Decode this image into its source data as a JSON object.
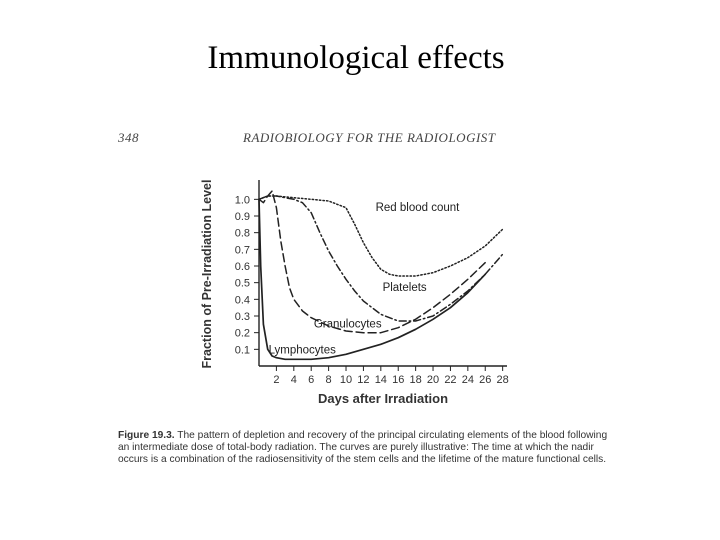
{
  "slide": {
    "title": "Immunological effects"
  },
  "page_header": {
    "page_number": "348",
    "book_title": "RADIOBIOLOGY FOR THE RADIOLOGIST"
  },
  "chart_data": {
    "type": "line",
    "title": "",
    "xlabel": "Days after Irradiation",
    "ylabel": "Fraction of Pre-Irradiation Level",
    "xlim": [
      0,
      28.5
    ],
    "ylim": [
      0,
      1.08
    ],
    "x_ticks": [
      2,
      4,
      6,
      8,
      10,
      12,
      14,
      16,
      18,
      20,
      22,
      24,
      26,
      28
    ],
    "y_ticks": [
      0.1,
      0.2,
      0.3,
      0.4,
      0.5,
      0.6,
      0.7,
      0.8,
      0.9,
      1.0
    ],
    "y_tick_labels": [
      "0.1",
      "0.2",
      "0.3",
      "0.4",
      "0.5",
      "0.6",
      "0.7",
      "0.8",
      "0.9",
      "1.0"
    ],
    "grid": false,
    "legend": "none",
    "series": [
      {
        "name": "Red blood count",
        "style": "dotted",
        "x": [
          0,
          1,
          2,
          4,
          6,
          8,
          10,
          11,
          12,
          13,
          14,
          15,
          16,
          18,
          20,
          22,
          24,
          26,
          28
        ],
        "y": [
          1.0,
          1.02,
          1.02,
          1.01,
          1.0,
          0.99,
          0.95,
          0.85,
          0.74,
          0.65,
          0.58,
          0.55,
          0.54,
          0.54,
          0.56,
          0.6,
          0.65,
          0.72,
          0.82
        ]
      },
      {
        "name": "Platelets",
        "style": "dash-dot",
        "x": [
          0,
          1,
          2,
          3,
          4,
          5,
          6,
          7,
          8,
          9,
          10,
          11,
          12,
          13,
          14,
          16,
          18,
          20,
          22,
          24,
          26,
          28
        ],
        "y": [
          1.0,
          1.02,
          1.02,
          1.01,
          1.0,
          0.98,
          0.92,
          0.8,
          0.69,
          0.6,
          0.52,
          0.45,
          0.39,
          0.35,
          0.31,
          0.27,
          0.27,
          0.3,
          0.37,
          0.45,
          0.55,
          0.67
        ]
      },
      {
        "name": "Granulocytes",
        "style": "long-dash",
        "x": [
          0,
          0.5,
          1,
          1.5,
          2,
          2.5,
          3,
          3.5,
          4,
          5,
          6,
          8,
          10,
          12,
          14,
          16,
          18,
          20,
          22,
          24,
          26
        ],
        "y": [
          1.0,
          0.98,
          1.02,
          1.05,
          0.95,
          0.75,
          0.6,
          0.47,
          0.4,
          0.33,
          0.29,
          0.24,
          0.21,
          0.2,
          0.2,
          0.23,
          0.28,
          0.35,
          0.43,
          0.52,
          0.62
        ]
      },
      {
        "name": "Lymphocytes",
        "style": "solid",
        "x": [
          0,
          0.2,
          0.5,
          1,
          1.5,
          2,
          3,
          4,
          6,
          8,
          10,
          12,
          14,
          16,
          18,
          20,
          22,
          24,
          26
        ],
        "y": [
          1.0,
          0.6,
          0.25,
          0.1,
          0.06,
          0.05,
          0.04,
          0.04,
          0.04,
          0.05,
          0.07,
          0.1,
          0.13,
          0.17,
          0.22,
          0.28,
          0.35,
          0.44,
          0.55
        ]
      }
    ],
    "annotations": [
      {
        "text": "Red blood count",
        "x": 13.4,
        "y": 0.93
      },
      {
        "text": "Platelets",
        "x": 14.2,
        "y": 0.45
      },
      {
        "text": "Granulocytes",
        "x": 6.3,
        "y": 0.23
      },
      {
        "text": "Lymphocytes",
        "x": 1.1,
        "y": 0.075
      }
    ]
  },
  "caption": {
    "label": "Figure 19.3.",
    "text": "The pattern of depletion and recovery of the principal circulating elements of the blood following an intermediate dose of total-body radiation. The curves are purely illustrative: The time at which the nadir occurs is a combination of the radiosensitivity of the stem cells and the lifetime of the mature functional cells."
  },
  "colors": {
    "ink": "#222222",
    "page": "#ffffff"
  }
}
